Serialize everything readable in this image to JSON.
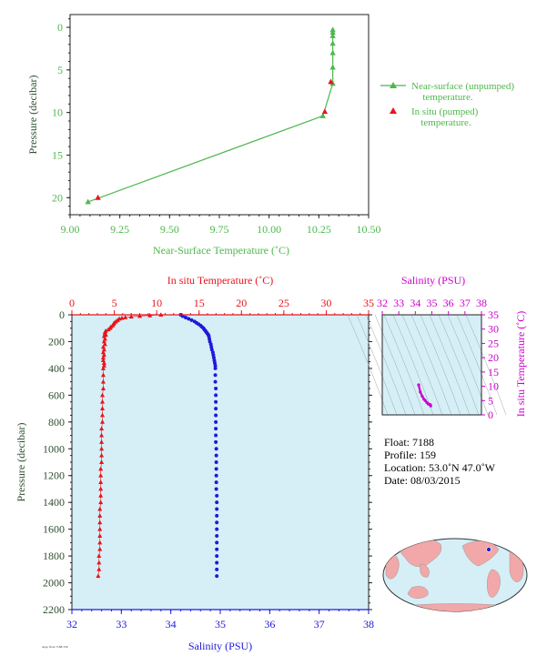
{
  "colors": {
    "green": "#4db84d",
    "red": "#e8141c",
    "blue": "#1d1ad9",
    "magenta": "#cc00cc",
    "panel_bg": "#d6eff7",
    "axis": "#222222",
    "land": "#f2a8a8",
    "ocean": "#d6eff7"
  },
  "top_chart": {
    "xlabel": "Near-Surface Temperature (˚C)",
    "ylabel": "Pressure (decibar)",
    "x_ticks": [
      "9.00",
      "9.25",
      "9.50",
      "9.75",
      "10.00",
      "10.25",
      "10.50"
    ],
    "y_ticks": [
      "0",
      "5",
      "10",
      "15",
      "20"
    ],
    "legend": {
      "unpumped_line1": "Near-surface (unpumped)",
      "unpumped_line2": "temperature.",
      "pumped_line1": "In situ (pumped)",
      "pumped_line2": "temperature."
    }
  },
  "main_chart": {
    "top_label": "In situ Temperature (˚C)",
    "bottom_label": "Salinity (PSU)",
    "ylabel": "Pressure (decibar)",
    "temp_ticks": [
      "0",
      "5",
      "10",
      "15",
      "20",
      "25",
      "30",
      "35"
    ],
    "sal_ticks": [
      "32",
      "33",
      "34",
      "35",
      "36",
      "37",
      "38"
    ],
    "pressure_ticks": [
      "0",
      "200",
      "400",
      "600",
      "800",
      "1000",
      "1200",
      "1400",
      "1600",
      "1800",
      "2000",
      "2200"
    ]
  },
  "ts_chart": {
    "top_label": "Salinity (PSU)",
    "right_label": "In situ Temperature (˚C)",
    "sal_ticks": [
      "32",
      "33",
      "34",
      "35",
      "36",
      "37",
      "38"
    ],
    "temp_ticks": [
      "0",
      "5",
      "10",
      "15",
      "20",
      "25",
      "30",
      "35"
    ]
  },
  "info": {
    "float": "Float:  7188",
    "profile": "Profile:  159",
    "location": "Location:  53.0˚N  47.0˚W",
    "date": "Date:  08/03/2015"
  },
  "footer_note": "Argo float 7188/159",
  "chart_data": [
    {
      "type": "line",
      "title": "",
      "xlabel": "Near-Surface Temperature (˚C)",
      "ylabel": "Pressure (decibar)",
      "xlim": [
        9.0,
        10.5
      ],
      "ylim": [
        22,
        -1.5
      ],
      "grid": false,
      "legend_position": "right",
      "series": [
        {
          "name": "Near-surface (unpumped) temperature.",
          "marker": "triangle",
          "points": [
            [
              10.32,
              0.3
            ],
            [
              10.32,
              0.6
            ],
            [
              10.32,
              1.0
            ],
            [
              10.32,
              1.9
            ],
            [
              10.32,
              3.0
            ],
            [
              10.32,
              4.7
            ],
            [
              10.32,
              6.6
            ],
            [
              10.27,
              10.4
            ],
            [
              9.09,
              20.5
            ]
          ]
        },
        {
          "name": "In situ (pumped) temperature.",
          "marker": "triangle",
          "points": [
            [
              10.31,
              6.4
            ],
            [
              10.28,
              9.9
            ],
            [
              9.14,
              20.0
            ]
          ]
        }
      ]
    },
    {
      "type": "line",
      "title": "",
      "ylabel": "Pressure (decibar)",
      "ylim": [
        2200,
        0
      ],
      "grid": false,
      "series": [
        {
          "name": "In situ Temperature (˚C)",
          "axis": "top",
          "xlim": [
            0,
            35
          ],
          "marker": "triangle",
          "points": [
            [
              10.5,
              0
            ],
            [
              9.2,
              5
            ],
            [
              8.0,
              10
            ],
            [
              7.0,
              15
            ],
            [
              6.3,
              20
            ],
            [
              5.9,
              25
            ],
            [
              5.6,
              30
            ],
            [
              5.4,
              40
            ],
            [
              5.2,
              50
            ],
            [
              5.0,
              60
            ],
            [
              4.9,
              70
            ],
            [
              4.8,
              80
            ],
            [
              4.6,
              90
            ],
            [
              4.5,
              100
            ],
            [
              4.3,
              110
            ],
            [
              4.0,
              120
            ],
            [
              3.9,
              130
            ],
            [
              3.9,
              140
            ],
            [
              4.0,
              150
            ],
            [
              3.8,
              160
            ],
            [
              3.9,
              180
            ],
            [
              3.8,
              200
            ],
            [
              3.9,
              220
            ],
            [
              3.7,
              240
            ],
            [
              3.8,
              260
            ],
            [
              3.7,
              280
            ],
            [
              3.8,
              300
            ],
            [
              3.7,
              320
            ],
            [
              3.7,
              340
            ],
            [
              3.8,
              360
            ],
            [
              3.8,
              380
            ],
            [
              3.7,
              400
            ],
            [
              3.7,
              450
            ],
            [
              3.7,
              500
            ],
            [
              3.7,
              550
            ],
            [
              3.6,
              600
            ],
            [
              3.6,
              650
            ],
            [
              3.6,
              700
            ],
            [
              3.6,
              750
            ],
            [
              3.6,
              800
            ],
            [
              3.5,
              850
            ],
            [
              3.5,
              900
            ],
            [
              3.5,
              950
            ],
            [
              3.5,
              1000
            ],
            [
              3.5,
              1050
            ],
            [
              3.5,
              1100
            ],
            [
              3.4,
              1150
            ],
            [
              3.4,
              1200
            ],
            [
              3.4,
              1250
            ],
            [
              3.4,
              1300
            ],
            [
              3.4,
              1350
            ],
            [
              3.4,
              1400
            ],
            [
              3.3,
              1450
            ],
            [
              3.3,
              1500
            ],
            [
              3.3,
              1550
            ],
            [
              3.3,
              1600
            ],
            [
              3.3,
              1650
            ],
            [
              3.3,
              1700
            ],
            [
              3.3,
              1750
            ],
            [
              3.2,
              1800
            ],
            [
              3.2,
              1850
            ],
            [
              3.2,
              1900
            ],
            [
              3.1,
              1950
            ]
          ]
        },
        {
          "name": "Salinity (PSU)",
          "axis": "bottom",
          "xlim": [
            32,
            38
          ],
          "marker": "circle",
          "points": [
            [
              34.2,
              0
            ],
            [
              34.24,
              10
            ],
            [
              34.3,
              20
            ],
            [
              34.36,
              30
            ],
            [
              34.42,
              40
            ],
            [
              34.48,
              50
            ],
            [
              34.52,
              60
            ],
            [
              34.56,
              70
            ],
            [
              34.6,
              80
            ],
            [
              34.63,
              90
            ],
            [
              34.66,
              100
            ],
            [
              34.68,
              110
            ],
            [
              34.7,
              120
            ],
            [
              34.72,
              130
            ],
            [
              34.74,
              140
            ],
            [
              34.76,
              150
            ],
            [
              34.77,
              160
            ],
            [
              34.78,
              180
            ],
            [
              34.79,
              200
            ],
            [
              34.81,
              220
            ],
            [
              34.82,
              240
            ],
            [
              34.83,
              260
            ],
            [
              34.85,
              280
            ],
            [
              34.86,
              300
            ],
            [
              34.87,
              320
            ],
            [
              34.88,
              340
            ],
            [
              34.89,
              360
            ],
            [
              34.9,
              380
            ],
            [
              34.9,
              400
            ],
            [
              34.9,
              450
            ],
            [
              34.9,
              500
            ],
            [
              34.91,
              550
            ],
            [
              34.91,
              600
            ],
            [
              34.91,
              650
            ],
            [
              34.91,
              700
            ],
            [
              34.91,
              750
            ],
            [
              34.91,
              800
            ],
            [
              34.91,
              850
            ],
            [
              34.91,
              900
            ],
            [
              34.91,
              950
            ],
            [
              34.92,
              1000
            ],
            [
              34.92,
              1050
            ],
            [
              34.92,
              1100
            ],
            [
              34.92,
              1150
            ],
            [
              34.92,
              1200
            ],
            [
              34.92,
              1250
            ],
            [
              34.92,
              1300
            ],
            [
              34.93,
              1350
            ],
            [
              34.93,
              1400
            ],
            [
              34.93,
              1450
            ],
            [
              34.93,
              1500
            ],
            [
              34.93,
              1550
            ],
            [
              34.93,
              1600
            ],
            [
              34.93,
              1650
            ],
            [
              34.93,
              1700
            ],
            [
              34.93,
              1750
            ],
            [
              34.93,
              1800
            ],
            [
              34.93,
              1850
            ],
            [
              34.93,
              1900
            ],
            [
              34.93,
              1950
            ]
          ]
        }
      ]
    },
    {
      "type": "scatter",
      "title": "",
      "xlabel": "Salinity (PSU)",
      "ylabel": "In situ Temperature (˚C)",
      "xlim": [
        32,
        38
      ],
      "ylim": [
        0,
        35
      ],
      "grid": false,
      "series": [
        {
          "name": "",
          "points": [
            [
              34.2,
              10.5
            ],
            [
              34.3,
              8.0
            ],
            [
              34.42,
              6.5
            ],
            [
              34.52,
              5.5
            ],
            [
              34.6,
              5.0
            ],
            [
              34.7,
              4.3
            ],
            [
              34.78,
              3.8
            ],
            [
              34.85,
              3.7
            ],
            [
              34.9,
              3.6
            ],
            [
              34.92,
              3.4
            ],
            [
              34.93,
              3.1
            ]
          ]
        }
      ]
    }
  ]
}
